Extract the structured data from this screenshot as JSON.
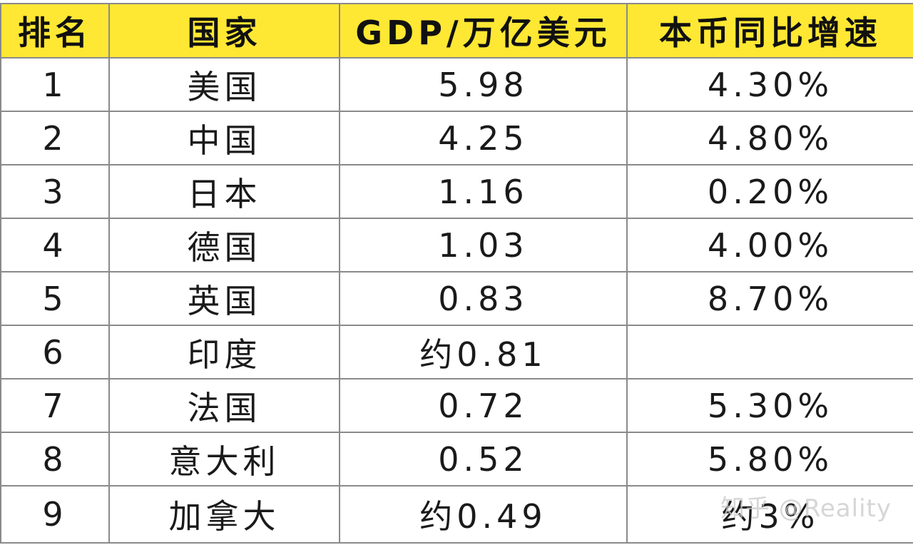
{
  "table": {
    "headers": {
      "rank": "排名",
      "country": "国家",
      "gdp": "GDP/万亿美元",
      "growth": "本币同比增速"
    },
    "rows": [
      {
        "rank": "1",
        "country": "美国",
        "gdp": "5.98",
        "growth": "4.30%"
      },
      {
        "rank": "2",
        "country": "中国",
        "gdp": "4.25",
        "growth": "4.80%"
      },
      {
        "rank": "3",
        "country": "日本",
        "gdp": "1.16",
        "growth": "0.20%"
      },
      {
        "rank": "4",
        "country": "德国",
        "gdp": "1.03",
        "growth": "4.00%"
      },
      {
        "rank": "5",
        "country": "英国",
        "gdp": "0.83",
        "growth": "8.70%"
      },
      {
        "rank": "6",
        "country": "印度",
        "gdp": "约0.81",
        "growth": ""
      },
      {
        "rank": "7",
        "country": "法国",
        "gdp": "0.72",
        "growth": "5.30%"
      },
      {
        "rank": "8",
        "country": "意大利",
        "gdp": "0.52",
        "growth": "5.80%"
      },
      {
        "rank": "9",
        "country": "加拿大",
        "gdp": "约0.49",
        "growth": "约3%"
      }
    ]
  },
  "colors": {
    "header_background": "#ffe833",
    "grid_lines": "#8a8a8a",
    "text": "#1a1a1a"
  },
  "watermark": "知乎 @Reality"
}
